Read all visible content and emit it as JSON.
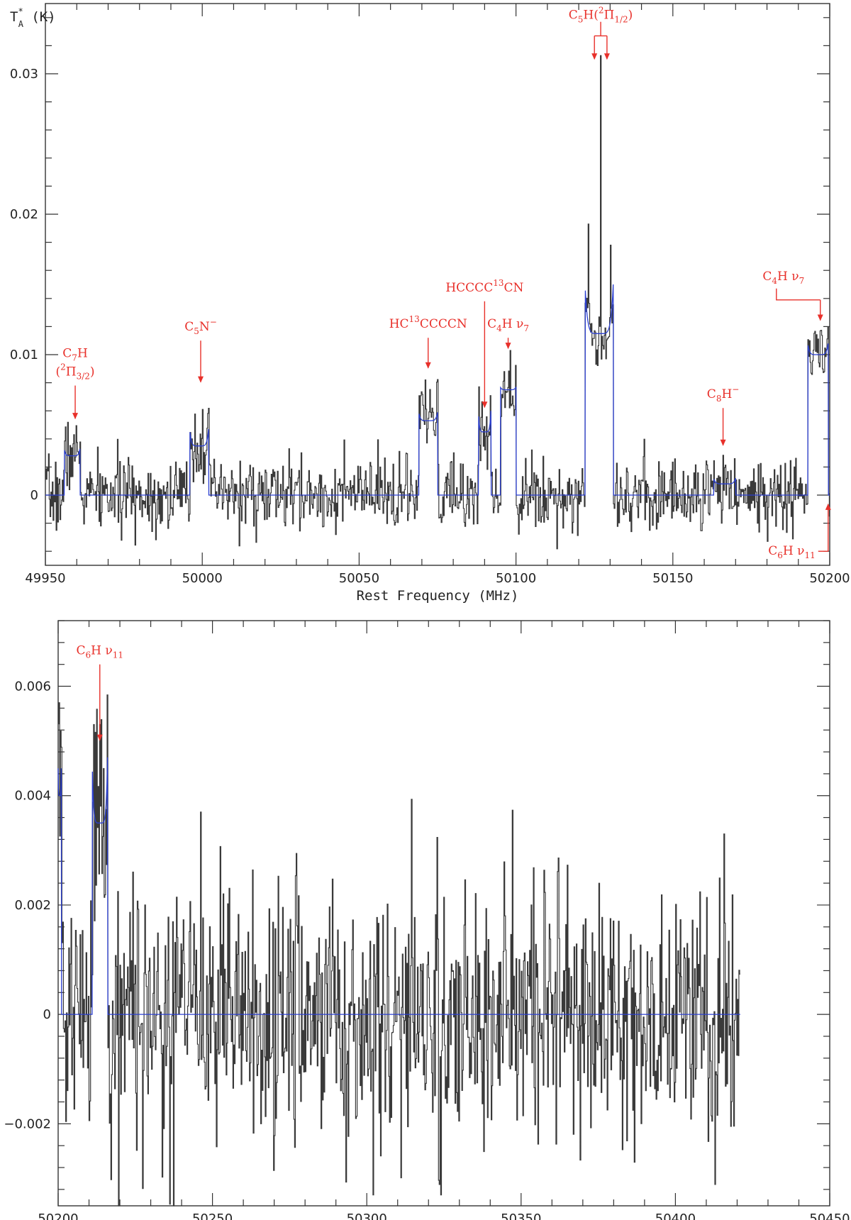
{
  "chart_data": [
    {
      "type": "line",
      "panel": "top",
      "ylabel": "T*A (K)",
      "ylabel_main": "T",
      "ylabel_sub": "A",
      "ylabel_sup": "*",
      "ylabel_unit": " (K)",
      "xlabel": "Rest Frequency (MHz)",
      "xlim": [
        49950,
        50200
      ],
      "ylim": [
        -0.005,
        0.035
      ],
      "xticks": [
        49950,
        50000,
        50050,
        50100,
        50150,
        50200
      ],
      "xtick_labels": [
        "49950",
        "50000",
        "50050",
        "50100",
        "50150",
        "50200"
      ],
      "yticks": [
        0,
        0.01,
        0.02,
        0.03
      ],
      "ytick_labels": [
        "0",
        "0.01",
        "0.02",
        "0.03"
      ],
      "noise_rms": 0.0015,
      "fit_components": [
        {
          "x": [
            49956,
            49961
          ],
          "level": 0.0028,
          "horns": 0.0005
        },
        {
          "x": [
            49996,
            50002
          ],
          "level": 0.0035,
          "horns": 0.0012
        },
        {
          "x": [
            50069,
            50075
          ],
          "level": 0.0053,
          "horns": 0.0006
        },
        {
          "x": [
            50088,
            50092
          ],
          "level": 0.0045,
          "horns": 0.0015
        },
        {
          "x": [
            50095,
            50100
          ],
          "level": 0.0075,
          "horns": 0.0002
        },
        {
          "x": [
            50122,
            50131
          ],
          "level": 0.0115,
          "horns": 0.0035
        },
        {
          "x": [
            50163,
            50170
          ],
          "level": 0.0008,
          "horns": 0.0004
        },
        {
          "x": [
            50193,
            50199.5
          ],
          "level": 0.01,
          "horns": 0.0008
        }
      ],
      "peaks": [
        {
          "x": 50123,
          "y": 0.0193
        },
        {
          "x": 50127,
          "y": 0.0313
        },
        {
          "x": 50130,
          "y": 0.0178
        },
        {
          "x": 50098,
          "y": 0.0103
        },
        {
          "x": 50197,
          "y": 0.0117
        },
        {
          "x": 50071,
          "y": 0.0082
        },
        {
          "x": 50000,
          "y": 0.0061
        },
        {
          "x": 49959,
          "y": 0.0043
        }
      ],
      "annotations": [
        {
          "lines": [
            [
              {
                "t": "C"
              },
              {
                "t": "7",
                "s": "sub"
              },
              {
                "t": "H"
              }
            ],
            [
              {
                "t": "("
              },
              {
                "t": "2",
                "s": "sup"
              },
              {
                "t": "Π"
              },
              {
                "t": "3/2",
                "s": "sub"
              },
              {
                "t": ")"
              }
            ]
          ],
          "x": 49959.5,
          "y_tip": 0.0054,
          "y_tail": 0.0078
        },
        {
          "lines": [
            [
              {
                "t": "C"
              },
              {
                "t": "5",
                "s": "sub"
              },
              {
                "t": "N"
              },
              {
                "t": "−",
                "s": "sup"
              }
            ]
          ],
          "x": 49999.5,
          "y_tip": 0.008,
          "y_tail": 0.011
        },
        {
          "lines": [
            [
              {
                "t": "HC"
              },
              {
                "t": "13",
                "s": "sup"
              },
              {
                "t": "CCCCN"
              }
            ]
          ],
          "x": 50072,
          "y_tip": 0.009,
          "y_tail": 0.0112
        },
        {
          "lines": [
            [
              {
                "t": "HCCCC"
              },
              {
                "t": "13",
                "s": "sup"
              },
              {
                "t": "CN"
              }
            ]
          ],
          "x": 50090,
          "y_tip": 0.0062,
          "y_tail": 0.0138
        },
        {
          "lines": [
            [
              {
                "t": "C"
              },
              {
                "t": "4",
                "s": "sub"
              },
              {
                "t": "H  ν"
              },
              {
                "t": "7",
                "s": "sub"
              }
            ]
          ],
          "x": 50097.5,
          "y_tip": 0.0104,
          "y_tail": 0.0112
        },
        {
          "lines": [
            [
              {
                "t": "C"
              },
              {
                "t": "8",
                "s": "sub"
              },
              {
                "t": "H"
              },
              {
                "t": "−",
                "s": "sup"
              }
            ]
          ],
          "x": 50166,
          "y_tip": 0.0035,
          "y_tail": 0.0062
        },
        {
          "lines": [
            [
              {
                "t": "C"
              },
              {
                "t": "4",
                "s": "sub"
              },
              {
                "t": "H  ν"
              },
              {
                "t": "7",
                "s": "sub"
              }
            ]
          ],
          "x": 50197,
          "y_tip": 0.0124,
          "y_tail": 0.0139,
          "bend_x": 50183
        }
      ],
      "bracket": {
        "lines": [
          [
            {
              "t": "C"
            },
            {
              "t": "5",
              "s": "sub"
            },
            {
              "t": "H("
            },
            {
              "t": "2",
              "s": "sup"
            },
            {
              "t": "Π"
            },
            {
              "t": "1/2",
              "s": "sub"
            },
            {
              "t": ")"
            }
          ]
        ],
        "x_left": 50125,
        "x_right": 50129,
        "y_tip": 0.031,
        "y_bar": 0.0327,
        "y_stem": 0.0337
      },
      "bottom_annotation": {
        "lines": [
          [
            {
              "t": "C"
            },
            {
              "t": "6",
              "s": "sub"
            },
            {
              "t": "H  ν"
            },
            {
              "t": "11",
              "s": "sub"
            }
          ]
        ],
        "x": 50199.5,
        "y_tip": -0.0006,
        "y_bend": -0.004
      }
    },
    {
      "type": "line",
      "panel": "bottom",
      "xlabel": "Rest Frequency (MHz)",
      "xlim": [
        50200,
        50450
      ],
      "ylim": [
        -0.0035,
        0.0072
      ],
      "xticks": [
        50200,
        50250,
        50300,
        50350,
        50400,
        50450
      ],
      "xtick_labels": [
        "50200",
        "50250",
        "50300",
        "50350",
        "50400",
        "50450"
      ],
      "yticks": [
        -0.002,
        0,
        0.002,
        0.004,
        0.006
      ],
      "ytick_labels": [
        "−0.002",
        "0",
        "0.002",
        "0.004",
        "0.006"
      ],
      "data_xrange": [
        50200,
        50421
      ],
      "noise_rms": 0.0014,
      "fit_components": [
        {
          "x": [
            50200,
            50201
          ],
          "level": 0.004,
          "horns": 0.0005
        },
        {
          "x": [
            50211,
            50216
          ],
          "level": 0.0035,
          "horns": 0.0012
        }
      ],
      "peaks": [
        {
          "x": 50200.2,
          "y": 0.0057
        },
        {
          "x": 50213.5,
          "y": 0.0053
        },
        {
          "x": 50246,
          "y": 0.0037
        },
        {
          "x": 50302,
          "y": -0.0033
        },
        {
          "x": 50324,
          "y": -0.0033
        }
      ],
      "annotations": [
        {
          "lines": [
            [
              {
                "t": "C"
              },
              {
                "t": "6",
                "s": "sub"
              },
              {
                "t": "H  ν"
              },
              {
                "t": "11",
                "s": "sub"
              }
            ]
          ],
          "x": 50213.5,
          "y_tip": 0.005,
          "y_tail": 0.0064
        }
      ]
    }
  ]
}
